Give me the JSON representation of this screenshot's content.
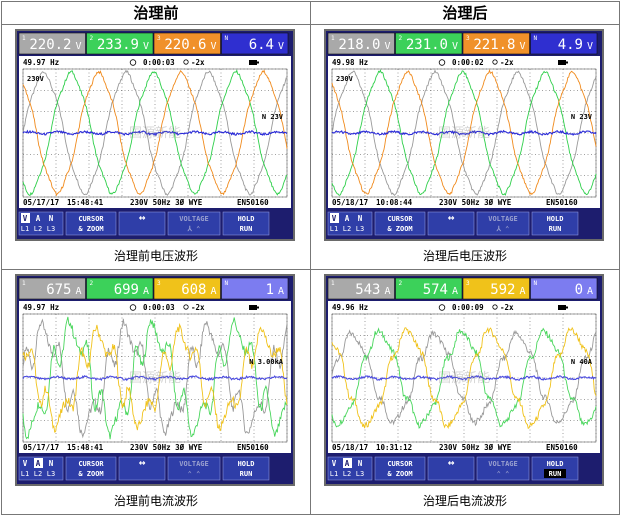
{
  "headers": {
    "before": "治理前",
    "after": "治理后"
  },
  "panels": [
    {
      "id": "voltage-before",
      "caption": "治理前电压波形",
      "readings": [
        {
          "label": "1",
          "value": "220.2",
          "unit": "V",
          "color": "#a9a9a9"
        },
        {
          "label": "2",
          "value": "233.9",
          "unit": "V",
          "color": "#3cd15a"
        },
        {
          "label": "3",
          "value": "220.6",
          "unit": "V",
          "color": "#f0912a"
        },
        {
          "label": "N",
          "value": "6.4",
          "unit": "V",
          "color": "#2f2fd0"
        }
      ],
      "freq": "49.97 Hz",
      "timer": "0:00:03",
      "zoom": "-2x",
      "scale_top": "230V",
      "n_label": "N",
      "n_scale": "23V",
      "date": "05/17/17",
      "time": "15:48:41",
      "config": "230V  50Hz 3Ø WYE",
      "std": "EN50160",
      "watermark": "国源新能",
      "buttons": {
        "sel1": "V",
        "sel2": "A",
        "sel3": "N",
        "l1": "L1",
        "l2": "L2",
        "l3": "L3",
        "cursor": "CURSOR",
        "zoom_btn": "& ZOOM",
        "voltage": "VOLTAGE",
        "hold": "HOLD",
        "run": "RUN"
      },
      "mode": "V",
      "kind": "voltage",
      "chart_data": {
        "type": "line",
        "series": [
          {
            "name": "L1",
            "color": "#999999",
            "amplitude_V": 311,
            "phase_deg": 0
          },
          {
            "name": "L2",
            "color": "#2ecf4a",
            "amplitude_V": 311,
            "phase_deg": -120
          },
          {
            "name": "L3",
            "color": "#f08a1c",
            "amplitude_V": 311,
            "phase_deg": 120
          },
          {
            "name": "N",
            "color": "#2a2ad8",
            "amplitude_V": 6,
            "phase_deg": 0
          }
        ],
        "cycles": 3.2
      }
    },
    {
      "id": "voltage-after",
      "caption": "治理后电压波形",
      "readings": [
        {
          "label": "1",
          "value": "218.0",
          "unit": "V",
          "color": "#a9a9a9"
        },
        {
          "label": "2",
          "value": "231.0",
          "unit": "V",
          "color": "#3cd15a"
        },
        {
          "label": "3",
          "value": "221.8",
          "unit": "V",
          "color": "#f0912a"
        },
        {
          "label": "N",
          "value": "4.9",
          "unit": "V",
          "color": "#2f2fd0"
        }
      ],
      "freq": "49.98 Hz",
      "timer": "0:00:02",
      "zoom": "-2x",
      "scale_top": "230V",
      "n_label": "N",
      "n_scale": "23V",
      "date": "05/18/17",
      "time": "10:08:44",
      "config": "230V  50Hz 3Ø WYE",
      "std": "EN50160",
      "watermark": "国源新能",
      "buttons": {
        "sel1": "V",
        "sel2": "A",
        "sel3": "N",
        "l1": "L1",
        "l2": "L2",
        "l3": "L3",
        "cursor": "CURSOR",
        "zoom_btn": "& ZOOM",
        "voltage": "VOLTAGE",
        "hold": "HOLD",
        "run": "RUN"
      },
      "mode": "V",
      "kind": "voltage",
      "chart_data": {
        "type": "line",
        "series": [
          {
            "name": "L1",
            "color": "#999999",
            "amplitude_V": 308,
            "phase_deg": 0
          },
          {
            "name": "L2",
            "color": "#2ecf4a",
            "amplitude_V": 308,
            "phase_deg": -120
          },
          {
            "name": "L3",
            "color": "#f08a1c",
            "amplitude_V": 308,
            "phase_deg": 120
          },
          {
            "name": "N",
            "color": "#2a2ad8",
            "amplitude_V": 5,
            "phase_deg": 0
          }
        ],
        "cycles": 3.2
      }
    },
    {
      "id": "current-before",
      "caption": "治理前电流波形",
      "readings": [
        {
          "label": "1",
          "value": "675",
          "unit": "A",
          "color": "#a9a9a9"
        },
        {
          "label": "2",
          "value": "699",
          "unit": "A",
          "color": "#3cd15a"
        },
        {
          "label": "3",
          "value": "608",
          "unit": "A",
          "color": "#f0c21a"
        },
        {
          "label": "N",
          "value": "1",
          "unit": "A",
          "color": "#7c7cf0"
        }
      ],
      "freq": "49.97 Hz",
      "timer": "0:00:03",
      "zoom": "-2x",
      "scale_top": "",
      "n_label": "N",
      "n_scale": "3.00kA",
      "date": "05/17/17",
      "time": "15:48:41",
      "config": "230V  50Hz 3Ø WYE",
      "std": "EN50160",
      "watermark": "国源新能",
      "buttons": {
        "sel1": "V",
        "sel2": "A",
        "sel3": "N",
        "l1": "L1",
        "l2": "L2",
        "l3": "L3",
        "cursor": "CURSOR",
        "zoom_btn": "& ZOOM",
        "voltage": "VOLTAGE",
        "hold": "HOLD",
        "run": "RUN"
      },
      "mode": "A",
      "kind": "current",
      "chart_data": {
        "type": "line",
        "series": [
          {
            "name": "L1",
            "color": "#999999",
            "amplitude_A": 950,
            "phase_deg": 0
          },
          {
            "name": "L2",
            "color": "#49d65c",
            "amplitude_A": 990,
            "phase_deg": -120
          },
          {
            "name": "L3",
            "color": "#f0c21a",
            "amplitude_A": 860,
            "phase_deg": 120
          },
          {
            "name": "N",
            "color": "#4a4ae0",
            "amplitude_A": 1,
            "phase_deg": 0
          }
        ],
        "cycles": 3.2
      }
    },
    {
      "id": "current-after",
      "caption": "治理后电流波形",
      "readings": [
        {
          "label": "1",
          "value": "543",
          "unit": "A",
          "color": "#a9a9a9"
        },
        {
          "label": "2",
          "value": "574",
          "unit": "A",
          "color": "#3cd15a"
        },
        {
          "label": "3",
          "value": "592",
          "unit": "A",
          "color": "#f0c21a"
        },
        {
          "label": "N",
          "value": "0",
          "unit": "A",
          "color": "#7c7cf0"
        }
      ],
      "freq": "49.96 Hz",
      "timer": "0:00:09",
      "zoom": "-2x",
      "scale_top": "",
      "n_label": "N",
      "n_scale": "40A",
      "date": "05/18/17",
      "time": "10:31:12",
      "config": "230V  50Hz 3Ø WYE",
      "std": "EN50160",
      "watermark": "国源新能",
      "buttons": {
        "sel1": "V",
        "sel2": "A",
        "sel3": "N",
        "l1": "L1",
        "l2": "L2",
        "l3": "L3",
        "cursor": "CURSOR",
        "zoom_btn": "& ZOOM",
        "voltage": "VOLTAGE",
        "hold": "HOLD",
        "run": "RUN"
      },
      "mode": "A",
      "kind": "current",
      "chart_data": {
        "type": "line",
        "series": [
          {
            "name": "L1",
            "color": "#999999",
            "amplitude_A": 770,
            "phase_deg": 0
          },
          {
            "name": "L2",
            "color": "#49d65c",
            "amplitude_A": 810,
            "phase_deg": -120
          },
          {
            "name": "L3",
            "color": "#f0c21a",
            "amplitude_A": 840,
            "phase_deg": 120
          },
          {
            "name": "N",
            "color": "#4a4ae0",
            "amplitude_A": 0,
            "phase_deg": 0
          }
        ],
        "cycles": 3.2
      }
    }
  ]
}
